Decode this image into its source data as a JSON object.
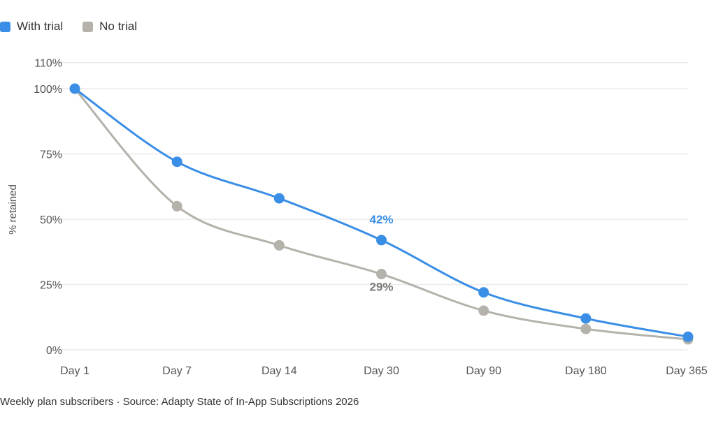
{
  "chart_data": {
    "type": "line",
    "categories": [
      "Day 1",
      "Day 7",
      "Day 14",
      "Day 30",
      "Day 90",
      "Day 180",
      "Day 365"
    ],
    "series": [
      {
        "name": "With trial",
        "color": "#3a8ee6",
        "values": [
          100,
          72,
          58,
          42,
          22,
          12,
          5
        ]
      },
      {
        "name": "No trial",
        "color": "#b5b2ab",
        "values": [
          100,
          55,
          40,
          29,
          15,
          8,
          4
        ]
      }
    ],
    "annotations": [
      {
        "series": 0,
        "category": "Day 30",
        "text": "42%",
        "position": "above"
      },
      {
        "series": 1,
        "category": "Day 30",
        "text": "29%",
        "position": "below"
      }
    ],
    "ylabel": "% retained",
    "xlabel": "",
    "ylim": [
      0,
      110
    ],
    "yticks": [
      0,
      25,
      50,
      75,
      100,
      110
    ],
    "ytick_labels": [
      "0%",
      "25%",
      "50%",
      "75%",
      "100%",
      "110%"
    ],
    "grid": true,
    "legend": "top-left",
    "smooth": true
  },
  "caption": "Weekly plan subscribers · Source: Adapty State of In-App Subscriptions 2026"
}
